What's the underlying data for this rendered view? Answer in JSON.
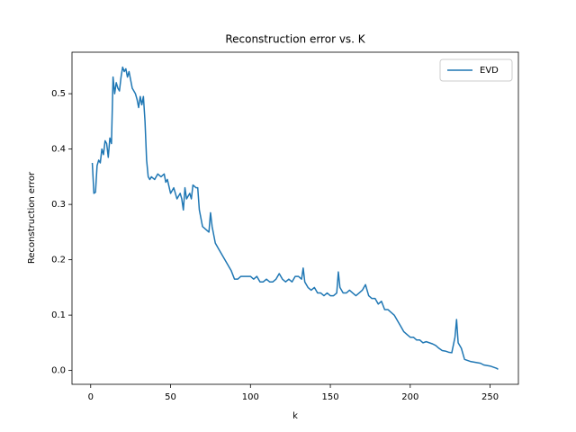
{
  "chart_data": {
    "type": "line",
    "title": "Reconstruction error vs. K",
    "xlabel": "k",
    "ylabel": "Reconstruction error",
    "x": [
      1,
      2,
      3,
      4,
      5,
      6,
      7,
      8,
      9,
      10,
      11,
      12,
      13,
      14,
      15,
      16,
      17,
      18,
      19,
      20,
      21,
      22,
      23,
      24,
      25,
      26,
      27,
      28,
      29,
      30,
      31,
      32,
      33,
      34,
      35,
      36,
      37,
      38,
      40,
      42,
      44,
      46,
      47,
      48,
      50,
      52,
      54,
      56,
      57,
      58,
      59,
      60,
      62,
      63,
      64,
      66,
      67,
      68,
      70,
      72,
      74,
      75,
      76,
      78,
      80,
      82,
      84,
      86,
      88,
      90,
      92,
      94,
      96,
      98,
      100,
      102,
      104,
      106,
      108,
      110,
      112,
      114,
      116,
      118,
      120,
      122,
      124,
      126,
      128,
      130,
      132,
      133,
      134,
      136,
      138,
      140,
      142,
      144,
      146,
      148,
      150,
      152,
      154,
      155,
      156,
      158,
      160,
      162,
      164,
      166,
      168,
      170,
      172,
      174,
      176,
      178,
      180,
      182,
      184,
      186,
      188,
      190,
      192,
      194,
      196,
      198,
      200,
      202,
      204,
      206,
      208,
      210,
      212,
      214,
      216,
      218,
      220,
      222,
      224,
      226,
      228,
      229,
      230,
      232,
      234,
      236,
      238,
      240,
      242,
      244,
      246,
      248,
      250,
      252,
      254,
      255
    ],
    "series": [
      {
        "name": "EVD",
        "color": "#1f77b4",
        "values": [
          0.375,
          0.32,
          0.322,
          0.37,
          0.38,
          0.375,
          0.4,
          0.39,
          0.415,
          0.41,
          0.385,
          0.42,
          0.41,
          0.53,
          0.5,
          0.52,
          0.51,
          0.505,
          0.53,
          0.548,
          0.54,
          0.545,
          0.53,
          0.54,
          0.525,
          0.51,
          0.505,
          0.5,
          0.49,
          0.475,
          0.495,
          0.48,
          0.495,
          0.45,
          0.38,
          0.35,
          0.345,
          0.35,
          0.345,
          0.355,
          0.35,
          0.355,
          0.34,
          0.345,
          0.32,
          0.33,
          0.31,
          0.32,
          0.31,
          0.29,
          0.33,
          0.31,
          0.32,
          0.31,
          0.335,
          0.33,
          0.33,
          0.29,
          0.26,
          0.255,
          0.25,
          0.285,
          0.26,
          0.23,
          0.22,
          0.21,
          0.2,
          0.19,
          0.18,
          0.165,
          0.165,
          0.17,
          0.17,
          0.17,
          0.17,
          0.165,
          0.17,
          0.16,
          0.16,
          0.165,
          0.16,
          0.16,
          0.165,
          0.175,
          0.165,
          0.16,
          0.165,
          0.16,
          0.17,
          0.17,
          0.165,
          0.185,
          0.16,
          0.15,
          0.145,
          0.15,
          0.14,
          0.14,
          0.135,
          0.14,
          0.135,
          0.135,
          0.14,
          0.178,
          0.15,
          0.14,
          0.14,
          0.145,
          0.14,
          0.135,
          0.14,
          0.145,
          0.155,
          0.135,
          0.13,
          0.13,
          0.12,
          0.125,
          0.11,
          0.11,
          0.105,
          0.1,
          0.09,
          0.08,
          0.07,
          0.065,
          0.06,
          0.06,
          0.055,
          0.055,
          0.05,
          0.052,
          0.05,
          0.048,
          0.045,
          0.04,
          0.036,
          0.035,
          0.033,
          0.032,
          0.06,
          0.092,
          0.05,
          0.04,
          0.02,
          0.018,
          0.016,
          0.015,
          0.014,
          0.013,
          0.01,
          0.009,
          0.008,
          0.006,
          0.004,
          0.002
        ]
      }
    ],
    "xlim": [
      -11.7,
      267.7
    ],
    "ylim": [
      -0.025,
      0.575
    ],
    "xticks": [
      0,
      50,
      100,
      150,
      200,
      250
    ],
    "yticks": [
      {
        "value": 0,
        "label": "0.0"
      },
      0.1,
      0.2,
      0.3,
      0.4,
      0.5
    ],
    "legend": "upper right"
  }
}
